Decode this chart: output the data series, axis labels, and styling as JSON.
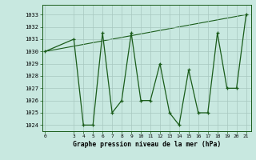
{
  "x": [
    0,
    3,
    4,
    5,
    6,
    7,
    8,
    9,
    10,
    11,
    12,
    13,
    14,
    15,
    16,
    17,
    18,
    19,
    20,
    21
  ],
  "y": [
    1030,
    1031,
    1024,
    1024,
    1031.5,
    1025,
    1026,
    1031.5,
    1026,
    1026,
    1029,
    1025,
    1024,
    1028.5,
    1025,
    1025,
    1031.5,
    1027,
    1027,
    1033
  ],
  "trend_x": [
    0,
    21
  ],
  "trend_y": [
    1030,
    1033
  ],
  "ylim": [
    1023.5,
    1033.8
  ],
  "xlim": [
    -0.3,
    21.5
  ],
  "yticks": [
    1024,
    1025,
    1026,
    1027,
    1028,
    1029,
    1030,
    1031,
    1032,
    1033
  ],
  "xticks": [
    0,
    3,
    4,
    5,
    6,
    7,
    8,
    9,
    10,
    11,
    12,
    13,
    14,
    15,
    16,
    17,
    18,
    19,
    20,
    21
  ],
  "line_color": "#1a5c1a",
  "bg_color": "#c8e8e0",
  "grid_color": "#a8c8c0",
  "xlabel": "Graphe pression niveau de la mer (hPa)"
}
